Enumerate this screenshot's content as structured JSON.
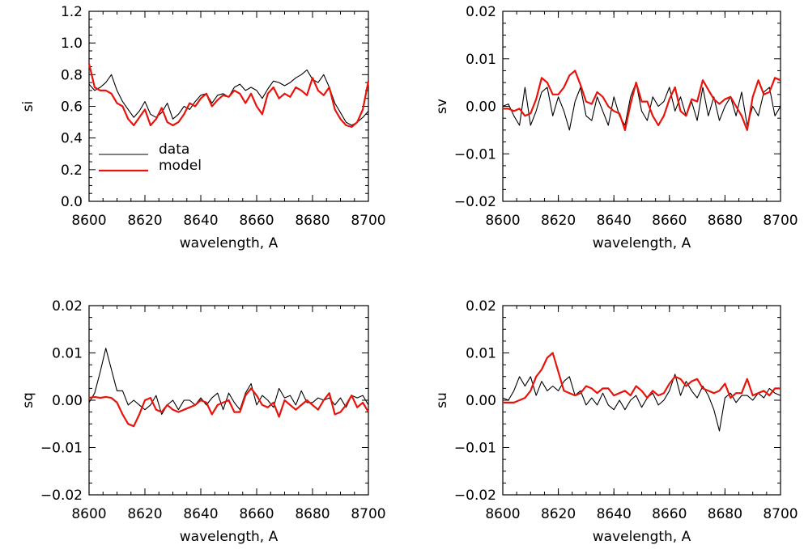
{
  "colors": {
    "data": "#000000",
    "model": "#e8140c",
    "axis": "#000000"
  },
  "chart_data": [
    {
      "type": "line",
      "xlabel": "wavelength, A",
      "ylabel": "si",
      "xlim": [
        8600,
        8700
      ],
      "ylim": [
        0.0,
        1.2
      ],
      "x_ticks": [
        "8600",
        "8620",
        "8640",
        "8660",
        "8680",
        "8700"
      ],
      "y_ticks": [
        "0.0",
        "0.2",
        "0.4",
        "0.6",
        "0.8",
        "1.0",
        "1.2"
      ],
      "y_tick_values": [
        0.0,
        0.2,
        0.4,
        0.6,
        0.8,
        1.0,
        1.2
      ],
      "legend": {
        "position": "lower-left",
        "entries": [
          "data",
          "model"
        ]
      },
      "series": [
        {
          "name": "data",
          "color": "#000000",
          "x": [
            8600,
            8602,
            8604,
            8606,
            8608,
            8610,
            8612,
            8614,
            8616,
            8618,
            8620,
            8622,
            8624,
            8626,
            8628,
            8630,
            8632,
            8634,
            8636,
            8638,
            8640,
            8642,
            8644,
            8646,
            8648,
            8650,
            8652,
            8654,
            8656,
            8658,
            8660,
            8662,
            8664,
            8666,
            8668,
            8670,
            8672,
            8674,
            8676,
            8678,
            8680,
            8682,
            8684,
            8686,
            8688,
            8690,
            8692,
            8694,
            8696,
            8698,
            8700
          ],
          "y": [
            0.74,
            0.7,
            0.72,
            0.75,
            0.8,
            0.7,
            0.63,
            0.58,
            0.53,
            0.57,
            0.63,
            0.55,
            0.53,
            0.56,
            0.62,
            0.52,
            0.55,
            0.6,
            0.58,
            0.63,
            0.67,
            0.68,
            0.62,
            0.67,
            0.68,
            0.66,
            0.72,
            0.74,
            0.7,
            0.72,
            0.7,
            0.65,
            0.71,
            0.76,
            0.75,
            0.73,
            0.75,
            0.78,
            0.8,
            0.83,
            0.77,
            0.75,
            0.8,
            0.72,
            0.62,
            0.56,
            0.5,
            0.48,
            0.5,
            0.53,
            0.57
          ]
        },
        {
          "name": "model",
          "color": "#e8140c",
          "x": [
            8600,
            8602,
            8604,
            8606,
            8608,
            8610,
            8612,
            8614,
            8616,
            8618,
            8620,
            8622,
            8624,
            8626,
            8628,
            8630,
            8632,
            8634,
            8636,
            8638,
            8640,
            8642,
            8644,
            8646,
            8648,
            8650,
            8652,
            8654,
            8656,
            8658,
            8660,
            8662,
            8664,
            8666,
            8668,
            8670,
            8672,
            8674,
            8676,
            8678,
            8680,
            8682,
            8684,
            8686,
            8688,
            8690,
            8692,
            8694,
            8696,
            8698,
            8700
          ],
          "y": [
            0.87,
            0.72,
            0.7,
            0.7,
            0.68,
            0.62,
            0.6,
            0.52,
            0.48,
            0.53,
            0.58,
            0.48,
            0.52,
            0.59,
            0.5,
            0.48,
            0.5,
            0.55,
            0.62,
            0.6,
            0.65,
            0.68,
            0.6,
            0.64,
            0.67,
            0.66,
            0.7,
            0.68,
            0.62,
            0.68,
            0.6,
            0.55,
            0.68,
            0.72,
            0.65,
            0.68,
            0.66,
            0.72,
            0.7,
            0.67,
            0.78,
            0.7,
            0.67,
            0.72,
            0.58,
            0.52,
            0.48,
            0.47,
            0.5,
            0.58,
            0.76
          ]
        }
      ]
    },
    {
      "type": "line",
      "xlabel": "wavelength, A",
      "ylabel": "sv",
      "xlim": [
        8600,
        8700
      ],
      "ylim": [
        -0.02,
        0.02
      ],
      "x_ticks": [
        "8600",
        "8620",
        "8640",
        "8660",
        "8680",
        "8700"
      ],
      "y_ticks": [
        "−0.02",
        "−0.01",
        "0.00",
        "0.01",
        "0.02"
      ],
      "y_tick_values": [
        -0.02,
        -0.01,
        0.0,
        0.01,
        0.02
      ],
      "series": [
        {
          "name": "data",
          "color": "#000000",
          "x": [
            8600,
            8602,
            8604,
            8606,
            8608,
            8610,
            8612,
            8614,
            8616,
            8618,
            8620,
            8622,
            8624,
            8626,
            8628,
            8630,
            8632,
            8634,
            8636,
            8638,
            8640,
            8642,
            8644,
            8646,
            8648,
            8650,
            8652,
            8654,
            8656,
            8658,
            8660,
            8662,
            8664,
            8666,
            8668,
            8670,
            8672,
            8674,
            8676,
            8678,
            8680,
            8682,
            8684,
            8686,
            8688,
            8690,
            8692,
            8694,
            8696,
            8698,
            8700
          ],
          "y": [
            0.0,
            0.0005,
            -0.002,
            -0.004,
            0.004,
            -0.004,
            -0.001,
            0.003,
            0.004,
            -0.002,
            0.002,
            -0.001,
            -0.005,
            0.001,
            0.004,
            -0.002,
            -0.003,
            0.002,
            -0.001,
            -0.004,
            0.002,
            -0.002,
            -0.004,
            0.002,
            0.005,
            -0.001,
            -0.003,
            0.002,
            0.0,
            0.001,
            0.004,
            -0.001,
            0.002,
            -0.002,
            0.001,
            -0.003,
            0.004,
            -0.002,
            0.002,
            -0.003,
            0.0,
            0.002,
            -0.002,
            0.003,
            -0.004,
            0.0,
            -0.002,
            0.003,
            0.004,
            -0.002,
            0.0
          ]
        },
        {
          "name": "model",
          "color": "#e8140c",
          "x": [
            8600,
            8602,
            8604,
            8606,
            8608,
            8610,
            8612,
            8614,
            8616,
            8618,
            8620,
            8622,
            8624,
            8626,
            8628,
            8630,
            8632,
            8634,
            8636,
            8638,
            8640,
            8642,
            8644,
            8646,
            8648,
            8650,
            8652,
            8654,
            8656,
            8658,
            8660,
            8662,
            8664,
            8666,
            8668,
            8670,
            8672,
            8674,
            8676,
            8678,
            8680,
            8682,
            8684,
            8686,
            8688,
            8690,
            8692,
            8694,
            8696,
            8698,
            8700
          ],
          "y": [
            -0.0005,
            -0.0005,
            -0.001,
            -0.0005,
            -0.002,
            -0.0015,
            0.0015,
            0.006,
            0.005,
            0.0025,
            0.0025,
            0.004,
            0.0065,
            0.0075,
            0.0045,
            0.001,
            0.0005,
            0.003,
            0.002,
            0.0,
            -0.001,
            -0.0015,
            -0.005,
            0.0005,
            0.005,
            0.001,
            0.001,
            -0.002,
            -0.004,
            -0.002,
            0.0015,
            0.004,
            -0.001,
            -0.002,
            0.0015,
            0.001,
            0.0055,
            0.0035,
            0.0015,
            0.0005,
            0.0015,
            0.002,
            0.0,
            -0.002,
            -0.005,
            0.002,
            0.0055,
            0.0025,
            0.003,
            0.006,
            0.0055
          ]
        }
      ]
    },
    {
      "type": "line",
      "xlabel": "wavelength, A",
      "ylabel": "sq",
      "xlim": [
        8600,
        8700
      ],
      "ylim": [
        -0.02,
        0.02
      ],
      "x_ticks": [
        "8600",
        "8620",
        "8640",
        "8660",
        "8680",
        "8700"
      ],
      "y_ticks": [
        "−0.02",
        "−0.01",
        "0.00",
        "0.01",
        "0.02"
      ],
      "y_tick_values": [
        -0.02,
        -0.01,
        0.0,
        0.01,
        0.02
      ],
      "series": [
        {
          "name": "data",
          "color": "#000000",
          "x": [
            8600,
            8602,
            8604,
            8606,
            8608,
            8610,
            8612,
            8614,
            8616,
            8618,
            8620,
            8622,
            8624,
            8626,
            8628,
            8630,
            8632,
            8634,
            8636,
            8638,
            8640,
            8642,
            8644,
            8646,
            8648,
            8650,
            8652,
            8654,
            8656,
            8658,
            8660,
            8662,
            8664,
            8666,
            8668,
            8670,
            8672,
            8674,
            8676,
            8678,
            8680,
            8682,
            8684,
            8686,
            8688,
            8690,
            8692,
            8694,
            8696,
            8698,
            8700
          ],
          "y": [
            -0.0005,
            0.0015,
            0.006,
            0.011,
            0.0065,
            0.002,
            0.002,
            -0.001,
            0.0,
            -0.001,
            -0.002,
            -0.001,
            0.001,
            -0.003,
            -0.001,
            0.0,
            -0.002,
            0.0,
            0.0,
            -0.001,
            0.0005,
            -0.001,
            0.0005,
            0.0015,
            -0.002,
            0.0015,
            -0.0005,
            -0.002,
            0.0015,
            0.0035,
            -0.001,
            0.001,
            0.0,
            -0.0015,
            0.0025,
            0.0005,
            0.001,
            -0.001,
            0.002,
            -0.0005,
            -0.0005,
            0.0005,
            0.0,
            0.0005,
            -0.001,
            0.0005,
            -0.0015,
            0.001,
            0.0005,
            0.001,
            -0.001
          ]
        },
        {
          "name": "model",
          "color": "#e8140c",
          "x": [
            8600,
            8602,
            8604,
            8606,
            8608,
            8610,
            8612,
            8614,
            8616,
            8618,
            8620,
            8622,
            8624,
            8626,
            8628,
            8630,
            8632,
            8634,
            8636,
            8638,
            8640,
            8642,
            8644,
            8646,
            8648,
            8650,
            8652,
            8654,
            8656,
            8658,
            8660,
            8662,
            8664,
            8666,
            8668,
            8670,
            8672,
            8674,
            8676,
            8678,
            8680,
            8682,
            8684,
            8686,
            8688,
            8690,
            8692,
            8694,
            8696,
            8698,
            8700
          ],
          "y": [
            0.0005,
            0.0007,
            0.0005,
            0.0007,
            0.0005,
            -0.0005,
            -0.003,
            -0.005,
            -0.0055,
            -0.003,
            0.0,
            0.0005,
            -0.002,
            -0.0025,
            -0.001,
            -0.002,
            -0.0025,
            -0.002,
            -0.0015,
            -0.001,
            0.0,
            -0.0005,
            -0.003,
            -0.001,
            -0.0005,
            0.0,
            -0.0025,
            -0.0025,
            0.001,
            0.0025,
            0.001,
            -0.001,
            -0.0015,
            -0.0005,
            -0.0035,
            0.0,
            -0.001,
            -0.002,
            -0.001,
            0.0,
            -0.001,
            -0.002,
            0.0,
            0.0015,
            -0.003,
            -0.0025,
            -0.001,
            0.001,
            -0.0015,
            -0.0005,
            -0.0025
          ]
        }
      ]
    },
    {
      "type": "line",
      "xlabel": "wavelength, A",
      "ylabel": "su",
      "xlim": [
        8600,
        8700
      ],
      "ylim": [
        -0.02,
        0.02
      ],
      "x_ticks": [
        "8600",
        "8620",
        "8640",
        "8660",
        "8680",
        "8700"
      ],
      "y_ticks": [
        "−0.02",
        "−0.01",
        "0.00",
        "0.01",
        "0.02"
      ],
      "y_tick_values": [
        -0.02,
        -0.01,
        0.0,
        0.01,
        0.02
      ],
      "series": [
        {
          "name": "data",
          "color": "#000000",
          "x": [
            8600,
            8602,
            8604,
            8606,
            8608,
            8610,
            8612,
            8614,
            8616,
            8618,
            8620,
            8622,
            8624,
            8626,
            8628,
            8630,
            8632,
            8634,
            8636,
            8638,
            8640,
            8642,
            8644,
            8646,
            8648,
            8650,
            8652,
            8654,
            8656,
            8658,
            8660,
            8662,
            8664,
            8666,
            8668,
            8670,
            8672,
            8674,
            8676,
            8678,
            8680,
            8682,
            8684,
            8686,
            8688,
            8690,
            8692,
            8694,
            8696,
            8698,
            8700
          ],
          "y": [
            0.0005,
            0.0,
            0.002,
            0.005,
            0.003,
            0.005,
            0.001,
            0.004,
            0.002,
            0.003,
            0.002,
            0.004,
            0.005,
            0.001,
            0.002,
            -0.001,
            0.0005,
            -0.001,
            0.0015,
            -0.001,
            -0.002,
            0.0,
            -0.002,
            0.0,
            0.001,
            -0.0015,
            0.0005,
            0.0015,
            -0.001,
            0.0,
            0.002,
            0.0055,
            0.001,
            0.004,
            0.002,
            0.0005,
            0.003,
            0.001,
            -0.002,
            -0.0065,
            0.0005,
            0.0015,
            -0.0005,
            0.001,
            0.001,
            0.0,
            0.0015,
            0.0005,
            0.0025,
            0.0015,
            0.001
          ]
        },
        {
          "name": "model",
          "color": "#e8140c",
          "x": [
            8600,
            8602,
            8604,
            8606,
            8608,
            8610,
            8612,
            8614,
            8616,
            8618,
            8620,
            8622,
            8624,
            8626,
            8628,
            8630,
            8632,
            8634,
            8636,
            8638,
            8640,
            8642,
            8644,
            8646,
            8648,
            8650,
            8652,
            8654,
            8656,
            8658,
            8660,
            8662,
            8664,
            8666,
            8668,
            8670,
            8672,
            8674,
            8676,
            8678,
            8680,
            8682,
            8684,
            8686,
            8688,
            8690,
            8692,
            8694,
            8696,
            8698,
            8700
          ],
          "y": [
            -0.0005,
            -0.0005,
            -0.0005,
            0.0,
            0.0005,
            0.002,
            0.005,
            0.0065,
            0.009,
            0.01,
            0.006,
            0.002,
            0.0015,
            0.001,
            0.0015,
            0.003,
            0.0025,
            0.0015,
            0.0025,
            0.0025,
            0.001,
            0.0015,
            0.002,
            0.001,
            0.003,
            0.002,
            0.0005,
            0.002,
            0.001,
            0.0015,
            0.0035,
            0.005,
            0.0045,
            0.003,
            0.004,
            0.0045,
            0.0025,
            0.002,
            0.0015,
            0.002,
            0.0035,
            0.0005,
            0.0015,
            0.0015,
            0.0045,
            0.001,
            0.0015,
            0.002,
            0.001,
            0.0025,
            0.0025
          ]
        }
      ]
    }
  ]
}
